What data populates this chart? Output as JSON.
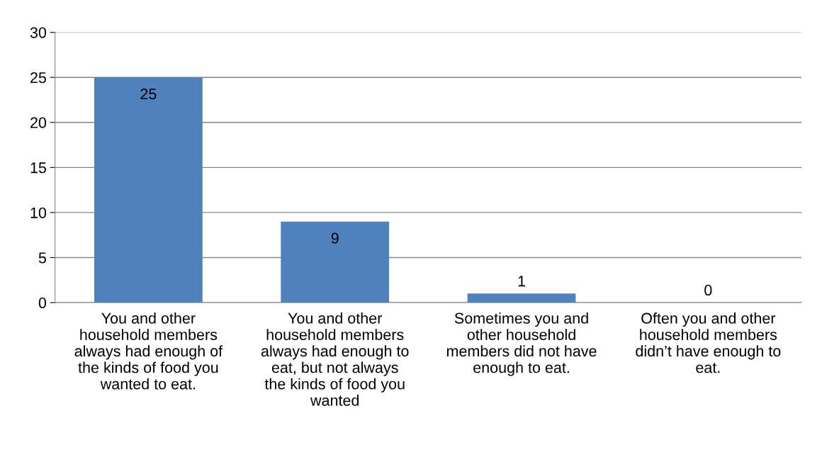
{
  "chart_data": {
    "type": "bar",
    "categories": [
      "You and other household members always had enough of the kinds of food you wanted to eat.",
      "You and other household members always had enough to eat, but not always the kinds of food you wanted",
      "Sometimes you and other household members did not have enough to eat.",
      "Often you and other household members didn’t have enough to eat."
    ],
    "values": [
      25,
      9,
      1,
      0
    ],
    "color": "#4f81bd",
    "ylim": [
      0,
      30
    ],
    "yticks": [
      0,
      5,
      10,
      15,
      20,
      25,
      30
    ],
    "grid": "y",
    "data_labels": true
  }
}
